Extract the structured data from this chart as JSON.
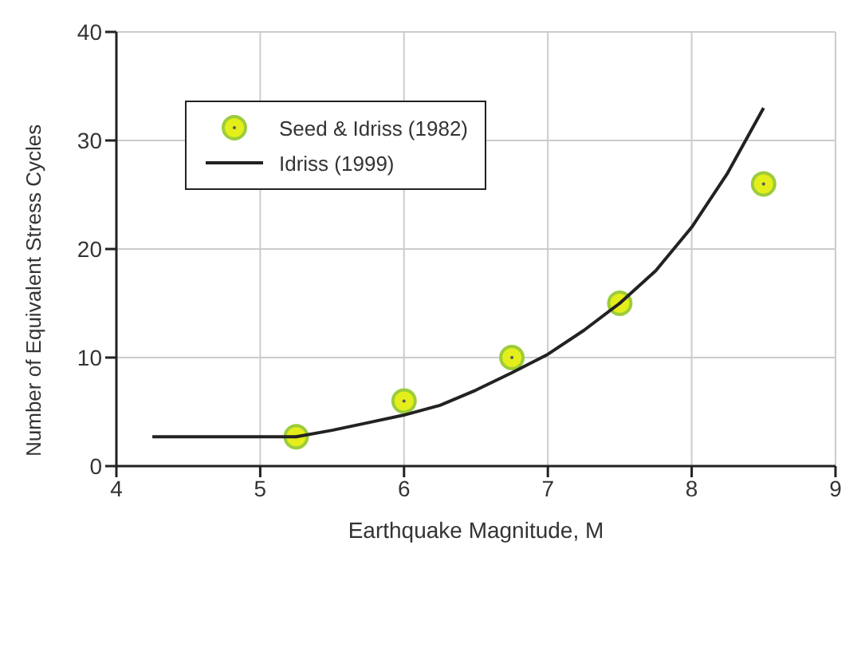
{
  "chart_data": {
    "type": "scatter",
    "xlabel": "Earthquake Magnitude, M",
    "ylabel": "Number of Equivalent Stress Cycles",
    "xlim": [
      4,
      9
    ],
    "xticks": [
      4,
      5,
      6,
      7,
      8,
      9
    ],
    "ylim": [
      0,
      40
    ],
    "yticks": [
      0,
      10,
      20,
      30,
      40
    ],
    "grid": true,
    "legend": "top left",
    "series": [
      {
        "name": "Seed & Idriss (1982)",
        "type": "scatter",
        "marker": "circle",
        "color": "#e4ee1a",
        "x": [
          5.25,
          6,
          6.75,
          7.5,
          8.5
        ],
        "values": [
          2.7,
          6,
          10,
          15,
          26
        ]
      },
      {
        "name": "Idriss (1999)",
        "type": "line",
        "marker": "none",
        "color": "#222222",
        "x": [
          4.25,
          4.75,
          5.25,
          5.5,
          5.75,
          6,
          6.25,
          6.5,
          6.75,
          7,
          7.25,
          7.5,
          7.75,
          8,
          8.25,
          8.5
        ],
        "values": [
          2.7,
          2.7,
          2.7,
          3.3,
          4,
          4.7,
          5.6,
          7,
          8.6,
          10.3,
          12.5,
          15,
          18,
          22,
          27,
          33
        ]
      }
    ]
  }
}
